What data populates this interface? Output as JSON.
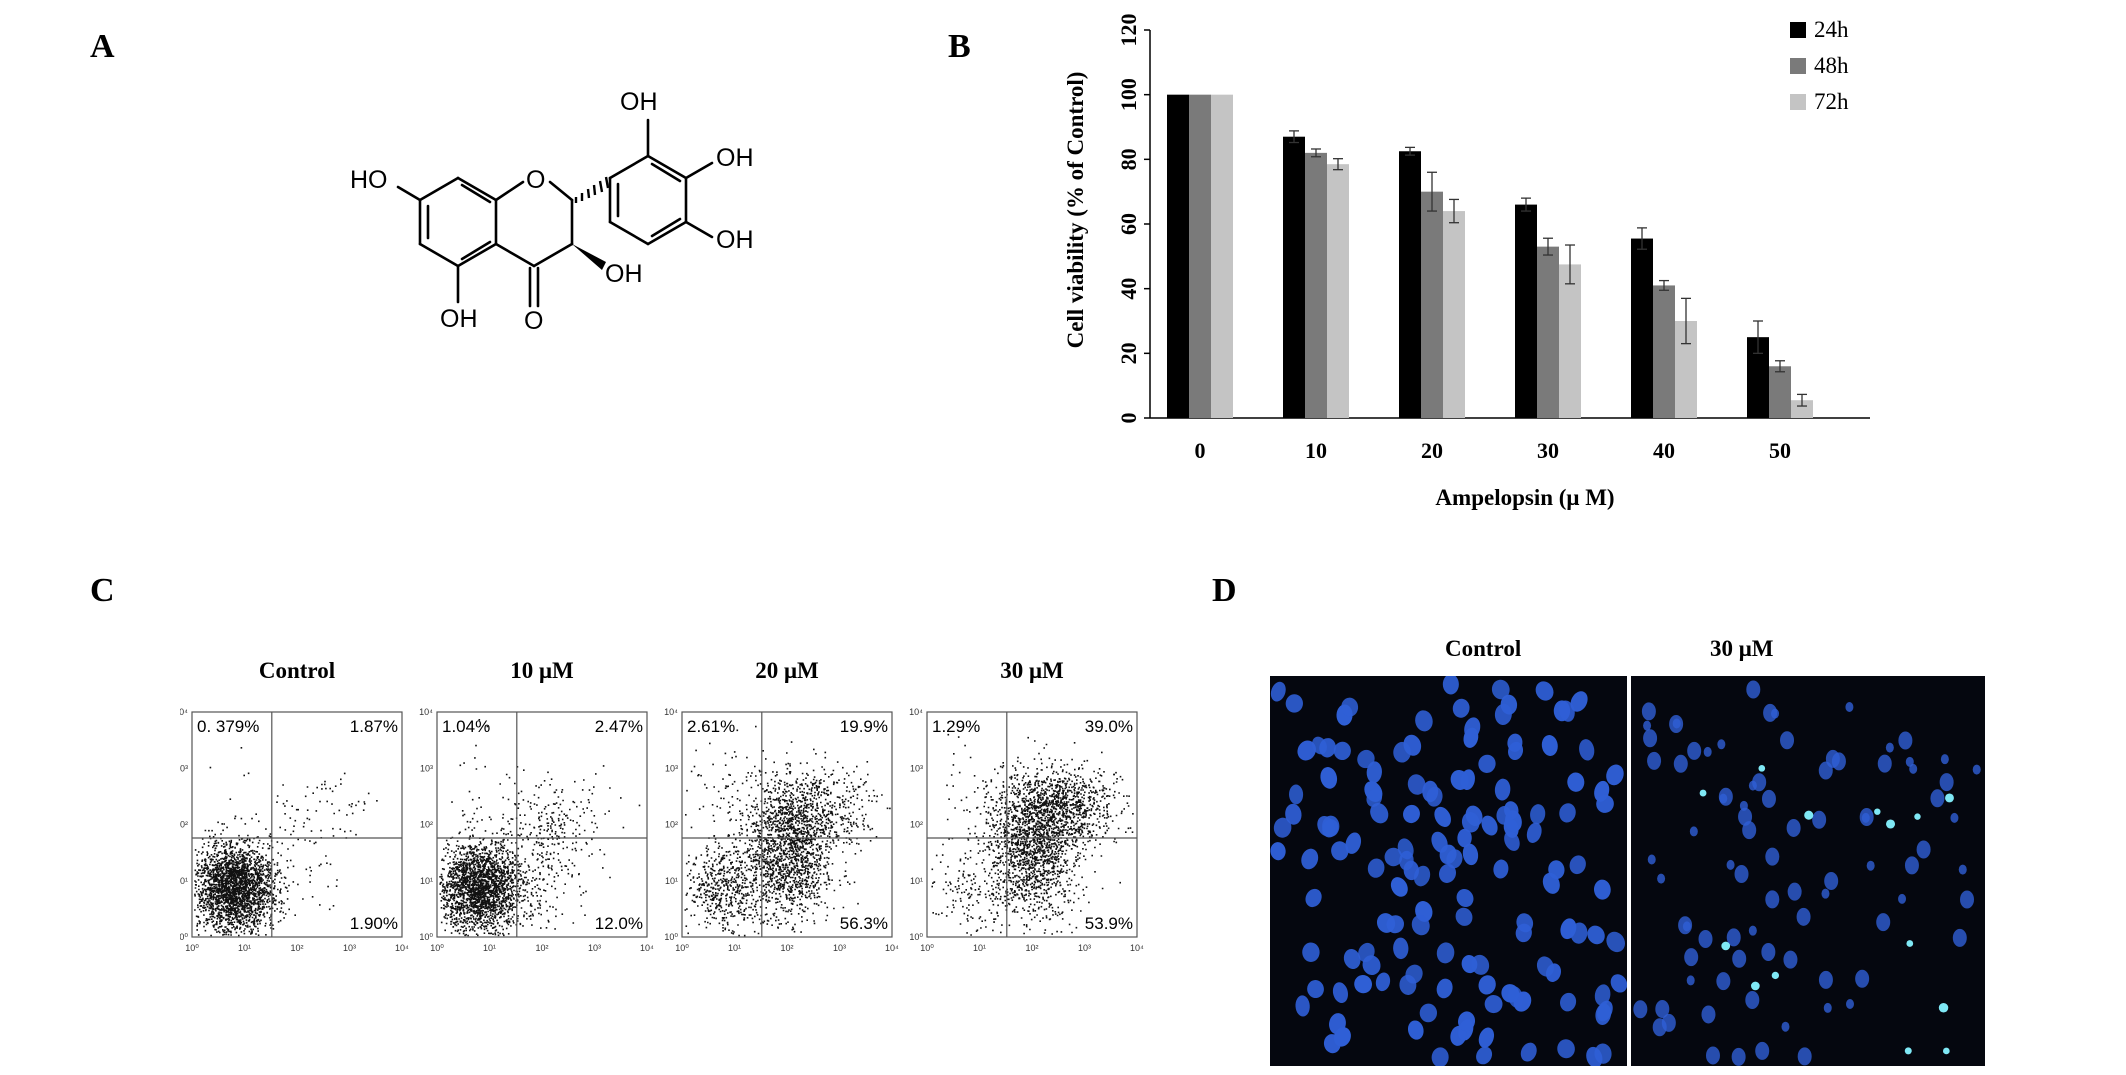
{
  "panels": {
    "a": {
      "letter": "A"
    },
    "b": {
      "letter": "B"
    },
    "c": {
      "letter": "C"
    },
    "d": {
      "letter": "D"
    }
  },
  "structure": {
    "labels": [
      "OH",
      "OH",
      "OH",
      "HO",
      "O",
      "OH",
      "OH",
      "O"
    ]
  },
  "chart_data": {
    "type": "bar",
    "categories": [
      "0",
      "10",
      "20",
      "30",
      "40",
      "50"
    ],
    "series": [
      {
        "name": "24h",
        "values": [
          100,
          87,
          82.5,
          66,
          55.5,
          25
        ],
        "errors": [
          0.3,
          1.8,
          1.2,
          2.0,
          3.3,
          5.0
        ]
      },
      {
        "name": "48h",
        "values": [
          100,
          82,
          70,
          53,
          41,
          16
        ],
        "errors": [
          0.3,
          1.2,
          6.0,
          2.6,
          1.5,
          1.7
        ]
      },
      {
        "name": "72h",
        "values": [
          100,
          78.5,
          64,
          47.5,
          30,
          5.5
        ],
        "errors": [
          0.3,
          1.7,
          3.6,
          6.0,
          7.0,
          1.8
        ]
      }
    ],
    "colors": [
      "#000000",
      "#7a7a7a",
      "#c4c4c4"
    ],
    "xlabel": "Ampelopsin (μ M)",
    "ylabel": "Cell viability (% of Control)",
    "ylim": [
      0,
      120
    ],
    "yticks": [
      "0",
      "20",
      "40",
      "60",
      "80",
      "100",
      "120"
    ],
    "legend_position": "top-right"
  },
  "flow_cytometry": {
    "axis_ticks": [
      "10⁰",
      "10¹",
      "10²",
      "10³",
      "10⁴"
    ],
    "plots": [
      {
        "title": "Control",
        "upper_left": "0. 379%",
        "upper_right": "1.87%",
        "lower_right": "1.90%",
        "lower_left_fraction": 0.959,
        "upper_right_fraction": 0.019,
        "lower_right_fraction": 0.019,
        "upper_left_fraction": 0.004
      },
      {
        "title": "10 μM",
        "upper_left": "1.04%",
        "upper_right": "2.47%",
        "lower_right": "12.0%",
        "lower_left_fraction": 0.845,
        "upper_right_fraction": 0.025,
        "lower_right_fraction": 0.12,
        "upper_left_fraction": 0.01
      },
      {
        "title": "20 μM",
        "upper_left": "2.61%",
        "upper_right": "19.9%",
        "lower_right": "56.3%",
        "lower_left_fraction": 0.212,
        "upper_right_fraction": 0.199,
        "lower_right_fraction": 0.563,
        "upper_left_fraction": 0.026
      },
      {
        "title": "30 μM",
        "upper_left": "1.29%",
        "upper_right": "39.0%",
        "lower_right": "53.9%",
        "lower_left_fraction": 0.058,
        "upper_right_fraction": 0.39,
        "lower_right_fraction": 0.539,
        "upper_left_fraction": 0.013
      }
    ]
  },
  "microscopy": {
    "left_title": "Control",
    "right_title": "30 μM",
    "background_color": "#05070f",
    "nucleus_color": "#2f5fd6",
    "bright_nucleus_color": "#7fe8f5"
  }
}
